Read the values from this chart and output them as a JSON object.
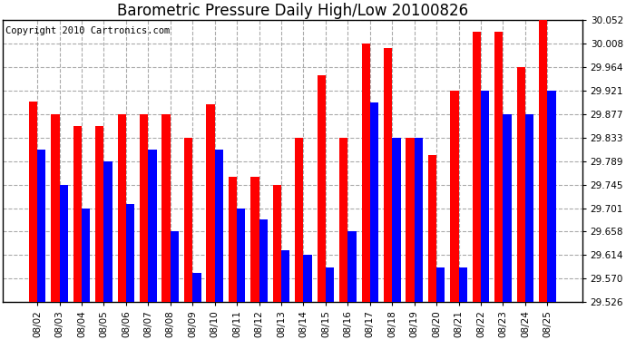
{
  "title": "Barometric Pressure Daily High/Low 20100826",
  "copyright": "Copyright 2010 Cartronics.com",
  "dates": [
    "08/02",
    "08/03",
    "08/04",
    "08/05",
    "08/06",
    "08/07",
    "08/08",
    "08/09",
    "08/10",
    "08/11",
    "08/12",
    "08/13",
    "08/14",
    "08/15",
    "08/16",
    "08/17",
    "08/18",
    "08/19",
    "08/20",
    "08/21",
    "08/22",
    "08/23",
    "08/24",
    "08/25"
  ],
  "highs": [
    29.9,
    29.877,
    29.855,
    29.855,
    29.877,
    29.877,
    29.877,
    29.833,
    29.895,
    29.76,
    29.76,
    29.745,
    29.833,
    29.95,
    29.833,
    30.008,
    30.0,
    29.833,
    29.8,
    29.921,
    30.03,
    30.03,
    29.964,
    30.052
  ],
  "lows": [
    29.811,
    29.745,
    29.7,
    29.789,
    29.71,
    29.811,
    29.658,
    29.58,
    29.811,
    29.701,
    29.68,
    29.623,
    29.614,
    29.59,
    29.658,
    29.899,
    29.833,
    29.833,
    29.59,
    29.59,
    29.921,
    29.877,
    29.877,
    29.921
  ],
  "high_color": "#FF0000",
  "low_color": "#0000FF",
  "bg_color": "#FFFFFF",
  "plot_bg_color": "#FFFFFF",
  "grid_color": "#AAAAAA",
  "yticks": [
    29.526,
    29.57,
    29.614,
    29.658,
    29.701,
    29.745,
    29.789,
    29.833,
    29.877,
    29.921,
    29.964,
    30.008,
    30.052
  ],
  "ymin": 29.526,
  "ymax": 30.052,
  "title_fontsize": 12,
  "copyright_fontsize": 7.5,
  "bar_width": 0.38
}
